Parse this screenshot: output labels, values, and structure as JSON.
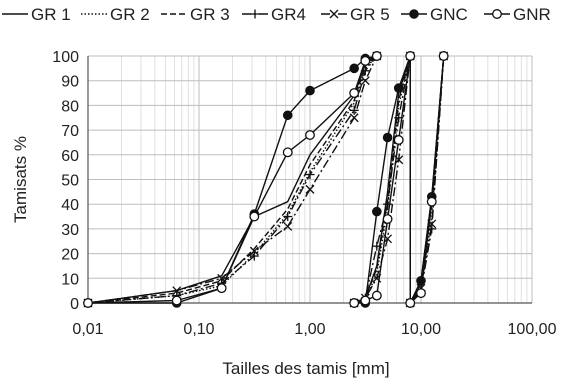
{
  "chart_data": {
    "type": "line",
    "title": "",
    "xlabel": "Tailles des tamis [mm]",
    "ylabel": "Tamisats %",
    "xscale": "log",
    "xlim": [
      0.01,
      100
    ],
    "ylim": [
      0,
      100
    ],
    "xticks": [
      0.01,
      0.1,
      1,
      10,
      100
    ],
    "xtick_labels": [
      "0,01",
      "0,10",
      "1,00",
      "10,00",
      "100,00"
    ],
    "yticks": [
      0,
      10,
      20,
      30,
      40,
      50,
      60,
      70,
      80,
      90,
      100
    ],
    "ytick_labels": [
      "0",
      "10",
      "20",
      "30",
      "40",
      "50",
      "60",
      "70",
      "80",
      "90",
      "100"
    ],
    "grid": true,
    "legend_position": "top",
    "series": [
      {
        "name": "GR 1",
        "style": "solid",
        "marker": "none",
        "points": [
          [
            0.01,
            0
          ],
          [
            0.063,
            5
          ],
          [
            0.16,
            11
          ],
          [
            0.315,
            35
          ],
          [
            0.63,
            41
          ],
          [
            1,
            60
          ],
          [
            2.5,
            84
          ],
          [
            3.15,
            97
          ],
          [
            4,
            100
          ],
          [
            2.5,
            0
          ],
          [
            3.15,
            2
          ],
          [
            4,
            15
          ],
          [
            5,
            45
          ],
          [
            6.3,
            85
          ],
          [
            8,
            100
          ],
          [
            8,
            0
          ],
          [
            10,
            9
          ],
          [
            12.5,
            43
          ],
          [
            16,
            100
          ]
        ]
      },
      {
        "name": "GR 2",
        "style": "dotted",
        "marker": "none",
        "points": [
          [
            0.01,
            0
          ],
          [
            0.063,
            3
          ],
          [
            0.16,
            7
          ],
          [
            0.315,
            20
          ],
          [
            0.63,
            36
          ],
          [
            1,
            53
          ],
          [
            2.5,
            81
          ],
          [
            3.15,
            95
          ],
          [
            4,
            100
          ],
          [
            2.5,
            0
          ],
          [
            3.15,
            1
          ],
          [
            4,
            12
          ],
          [
            5,
            38
          ],
          [
            6.3,
            80
          ],
          [
            8,
            100
          ],
          [
            8,
            0
          ],
          [
            10,
            6
          ],
          [
            12.5,
            35
          ],
          [
            16,
            100
          ]
        ]
      },
      {
        "name": "GR 3",
        "style": "dashed",
        "marker": "none",
        "points": [
          [
            0.01,
            0
          ],
          [
            0.063,
            4
          ],
          [
            0.16,
            9
          ],
          [
            0.315,
            22
          ],
          [
            0.63,
            38
          ],
          [
            1,
            56
          ],
          [
            2.5,
            82
          ],
          [
            3.15,
            96
          ],
          [
            4,
            100
          ],
          [
            2.5,
            0
          ],
          [
            3.15,
            2
          ],
          [
            4,
            14
          ],
          [
            5,
            42
          ],
          [
            6.3,
            82
          ],
          [
            8,
            100
          ],
          [
            8,
            0
          ],
          [
            10,
            8
          ],
          [
            12.5,
            40
          ],
          [
            16,
            100
          ]
        ]
      },
      {
        "name": "GR4",
        "style": "dashdot",
        "marker": "plus",
        "points": [
          [
            0.01,
            0
          ],
          [
            0.063,
            3
          ],
          [
            0.16,
            8
          ],
          [
            0.315,
            19
          ],
          [
            0.63,
            35
          ],
          [
            1,
            52
          ],
          [
            2.5,
            78
          ],
          [
            3.15,
            94
          ],
          [
            4,
            100
          ],
          [
            2.5,
            0
          ],
          [
            3.15,
            2
          ],
          [
            4,
            23
          ],
          [
            5,
            40
          ],
          [
            6.3,
            75
          ],
          [
            8,
            100
          ],
          [
            8,
            0
          ],
          [
            10,
            5
          ],
          [
            12.5,
            30
          ],
          [
            16,
            100
          ]
        ]
      },
      {
        "name": "GR 5",
        "style": "dashdot",
        "marker": "x",
        "points": [
          [
            0.01,
            0
          ],
          [
            0.063,
            5
          ],
          [
            0.16,
            10
          ],
          [
            0.315,
            21
          ],
          [
            0.63,
            31
          ],
          [
            1,
            46
          ],
          [
            2.5,
            75
          ],
          [
            3.15,
            90
          ],
          [
            4,
            100
          ],
          [
            2.5,
            0
          ],
          [
            3.15,
            2
          ],
          [
            4,
            10
          ],
          [
            5,
            26
          ],
          [
            6.3,
            58
          ],
          [
            8,
            100
          ],
          [
            8,
            0
          ],
          [
            10,
            6
          ],
          [
            12.5,
            32
          ],
          [
            16,
            100
          ]
        ]
      },
      {
        "name": "GNC",
        "style": "solid",
        "marker": "filled-circle",
        "points": [
          [
            0.01,
            0
          ],
          [
            0.063,
            0
          ],
          [
            0.16,
            6
          ],
          [
            0.315,
            36
          ],
          [
            0.63,
            76
          ],
          [
            1,
            86
          ],
          [
            2.5,
            95
          ],
          [
            3.15,
            99
          ],
          [
            4,
            100
          ],
          [
            2.5,
            0
          ],
          [
            3.15,
            0
          ],
          [
            4,
            37
          ],
          [
            5,
            67
          ],
          [
            6.3,
            87
          ],
          [
            8,
            100
          ],
          [
            8,
            0
          ],
          [
            10,
            9
          ],
          [
            12.5,
            43
          ],
          [
            16,
            100
          ]
        ]
      },
      {
        "name": "GNR",
        "style": "solid",
        "marker": "open-circle",
        "points": [
          [
            0.01,
            0
          ],
          [
            0.063,
            1
          ],
          [
            0.16,
            6
          ],
          [
            0.315,
            35
          ],
          [
            0.63,
            61
          ],
          [
            1,
            68
          ],
          [
            2.5,
            85
          ],
          [
            3.15,
            98
          ],
          [
            4,
            100
          ],
          [
            2.5,
            0
          ],
          [
            3.15,
            1
          ],
          [
            4,
            3
          ],
          [
            5,
            34
          ],
          [
            6.3,
            66
          ],
          [
            8,
            100
          ],
          [
            8,
            0
          ],
          [
            10,
            4
          ],
          [
            12.5,
            41
          ],
          [
            16,
            100
          ]
        ]
      }
    ]
  }
}
